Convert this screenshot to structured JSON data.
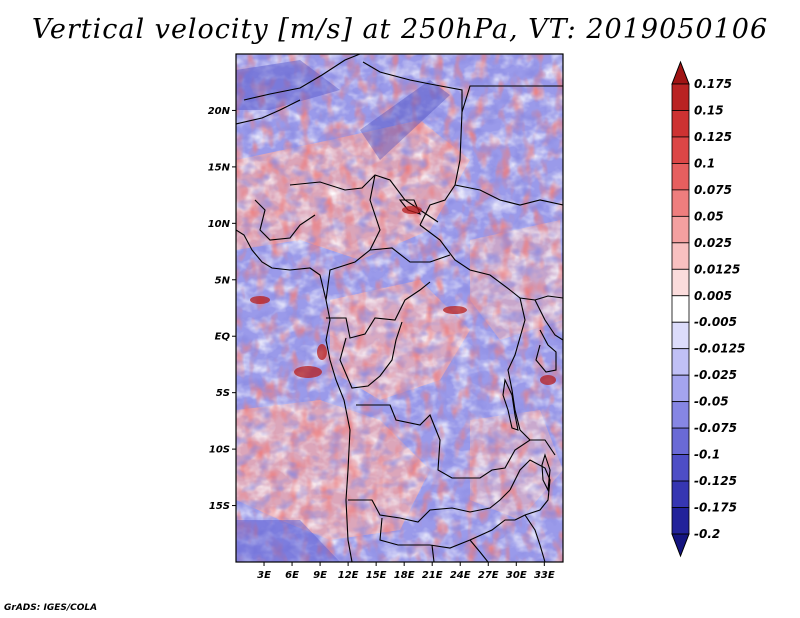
{
  "figure": {
    "title": "Vertical velocity [m/s] at 250hPa, VT: 2019050106",
    "footer": "GrADS: IGES/COLA"
  },
  "map": {
    "lat_range": [
      -20,
      25
    ],
    "lon_range": [
      0,
      35
    ],
    "lat_labels": [
      "20N",
      "15N",
      "10N",
      "5N",
      "EQ",
      "5S",
      "10S",
      "15S"
    ],
    "lon_labels": [
      "3E",
      "6E",
      "9E",
      "12E",
      "15E",
      "18E",
      "21E",
      "24E",
      "27E",
      "30E",
      "33E"
    ]
  },
  "colorbar": {
    "labels": [
      "0.175",
      "0.15",
      "0.125",
      "0.1",
      "0.075",
      "0.05",
      "0.025",
      "0.0125",
      "0.005",
      "-0.005",
      "-0.0125",
      "-0.025",
      "-0.05",
      "-0.075",
      "-0.1",
      "-0.125",
      "-0.175",
      "-0.2"
    ],
    "colors": [
      "#a01414",
      "#b92323",
      "#cd3232",
      "#dc4646",
      "#e65f5f",
      "#ee7e7e",
      "#f4a0a0",
      "#f8c0c0",
      "#fbdcdc",
      "#ffffff",
      "#dcdcfb",
      "#c0c0f6",
      "#a4a4ee",
      "#8686e4",
      "#6a6ad6",
      "#4e4ec6",
      "#3636b2",
      "#22229a",
      "#141480"
    ]
  }
}
